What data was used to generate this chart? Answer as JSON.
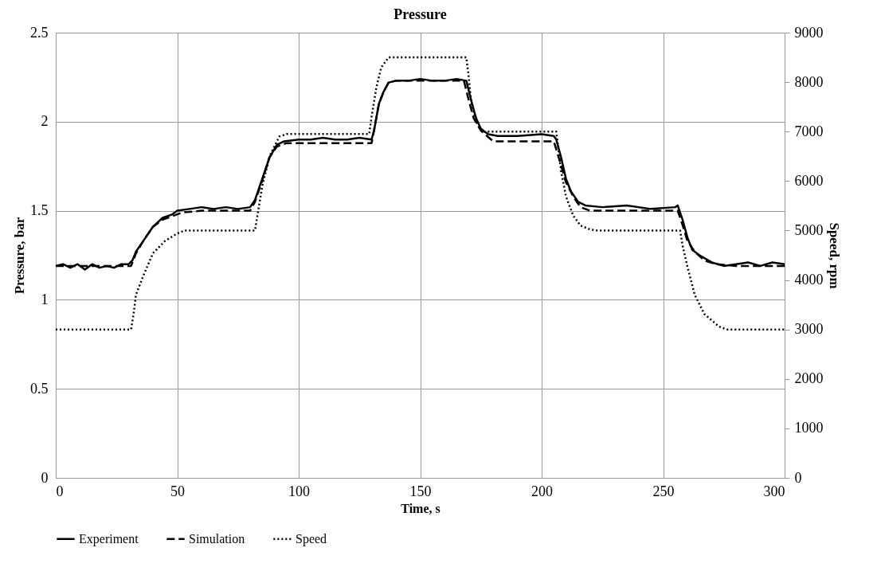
{
  "chart_data": {
    "type": "line",
    "title": "Pressure",
    "xlabel": "Time, s",
    "ylabel": "Pressure, bar",
    "y2label": "Speed, rpm",
    "xlim": [
      0,
      300
    ],
    "xticks": [
      0,
      50,
      100,
      150,
      200,
      250,
      300
    ],
    "ylim": [
      0,
      2.5
    ],
    "yticks": [
      0,
      0.5,
      1,
      1.5,
      2,
      2.5
    ],
    "y2lim": [
      0,
      9000
    ],
    "y2ticks": [
      0,
      1000,
      2000,
      3000,
      4000,
      5000,
      6000,
      7000,
      8000,
      9000
    ],
    "grid": true,
    "legend": "bottom",
    "marker": "none",
    "series": [
      {
        "name": "Experiment",
        "color": "#000000",
        "line_style": "solid",
        "x": [
          0,
          3,
          6,
          9,
          12,
          15,
          18,
          21,
          24,
          27,
          30,
          31.5,
          33,
          36,
          40,
          44,
          48,
          50,
          55,
          60,
          65,
          70,
          75,
          80,
          82,
          85,
          88,
          91,
          94,
          100,
          105,
          110,
          115,
          120,
          125,
          130,
          131,
          133,
          135,
          137,
          140,
          145,
          150,
          155,
          160,
          165,
          169,
          171,
          173,
          175,
          178,
          182,
          190,
          200,
          205,
          206,
          208,
          210,
          212,
          215,
          218,
          225,
          235,
          245,
          255,
          256,
          258,
          260,
          262,
          265,
          270,
          275,
          280,
          285,
          290,
          295,
          300
        ],
        "values": [
          1.19,
          1.2,
          1.18,
          1.2,
          1.17,
          1.2,
          1.18,
          1.19,
          1.18,
          1.2,
          1.2,
          1.22,
          1.27,
          1.33,
          1.41,
          1.46,
          1.48,
          1.5,
          1.51,
          1.52,
          1.51,
          1.52,
          1.51,
          1.52,
          1.56,
          1.68,
          1.8,
          1.87,
          1.89,
          1.9,
          1.9,
          1.91,
          1.9,
          1.9,
          1.91,
          1.9,
          1.95,
          2.1,
          2.17,
          2.22,
          2.23,
          2.23,
          2.24,
          2.23,
          2.23,
          2.24,
          2.23,
          2.12,
          2.02,
          1.96,
          1.93,
          1.92,
          1.92,
          1.93,
          1.92,
          1.9,
          1.8,
          1.68,
          1.61,
          1.55,
          1.53,
          1.52,
          1.53,
          1.51,
          1.52,
          1.53,
          1.45,
          1.35,
          1.28,
          1.25,
          1.21,
          1.19,
          1.2,
          1.21,
          1.19,
          1.21,
          1.2
        ]
      },
      {
        "name": "Simulation",
        "color": "#000000",
        "line_style": "dashed",
        "x": [
          0,
          31,
          33,
          36,
          40,
          44,
          48,
          52,
          60,
          80,
          82,
          85,
          88,
          91,
          95,
          130,
          131,
          133,
          135,
          137,
          140,
          168,
          170,
          172,
          175,
          180,
          205,
          207,
          210,
          213,
          216,
          220,
          256,
          258,
          260,
          263,
          267,
          272,
          280,
          300
        ],
        "values": [
          1.19,
          1.19,
          1.26,
          1.33,
          1.41,
          1.45,
          1.47,
          1.49,
          1.5,
          1.5,
          1.55,
          1.67,
          1.8,
          1.86,
          1.88,
          1.88,
          1.95,
          2.1,
          2.17,
          2.22,
          2.23,
          2.23,
          2.12,
          2.02,
          1.95,
          1.89,
          1.89,
          1.8,
          1.66,
          1.58,
          1.52,
          1.5,
          1.5,
          1.42,
          1.33,
          1.27,
          1.22,
          1.2,
          1.19,
          1.19
        ]
      },
      {
        "name": "Speed",
        "color": "#000000",
        "line_style": "dotted",
        "axis": "y2",
        "x": [
          0,
          31,
          32,
          33,
          36,
          40,
          45,
          50,
          53,
          82,
          83,
          85,
          88,
          92,
          95,
          129,
          130,
          132,
          134,
          137,
          169,
          170,
          171,
          173,
          176,
          206,
          207,
          208,
          210,
          213,
          216,
          220,
          223,
          257,
          258,
          260,
          263,
          267,
          273,
          276,
          300
        ],
        "values": [
          3000,
          3000,
          3300,
          3700,
          4080,
          4540,
          4790,
          4940,
          5000,
          5000,
          5300,
          5900,
          6500,
          6900,
          6950,
          6950,
          7300,
          7900,
          8300,
          8500,
          8500,
          8100,
          7600,
          7200,
          7000,
          7000,
          6600,
          6200,
          5690,
          5300,
          5100,
          5020,
          5000,
          5000,
          4700,
          4270,
          3700,
          3310,
          3060,
          3000,
          3000
        ]
      }
    ]
  }
}
